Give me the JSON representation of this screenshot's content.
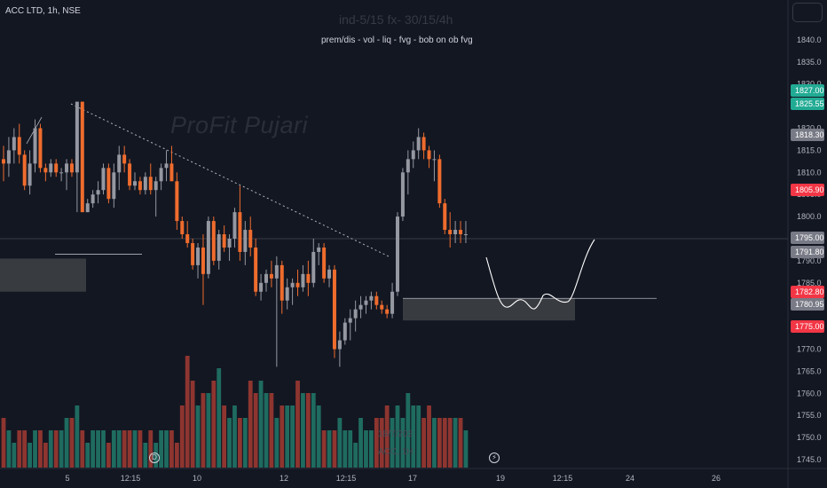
{
  "symbol_title": "ACC LTD, 1h, NSE",
  "watermark_top": "ind-5/15 fx- 30/15/4h",
  "indicator_subtitle": "prem/dis - vol - liq - fvg - bob on ob fvg",
  "watermark_name": "ProFit Pujari",
  "watermark_bottom_1": "18/7/202",
  "watermark_bottom_2": "ACC, 1H",
  "icons": {
    "menu": "hamburger-icon",
    "event_left": "dividend-icon",
    "event_right": "earnings-lightning-icon"
  },
  "colors": {
    "background": "#131722",
    "up": "#9598a1",
    "down": "#ef6c2d",
    "vol_up": "#1f6b60",
    "vol_down": "#8e3530",
    "tag_green": "#22ab94",
    "tag_red": "#f23645",
    "tag_gray": "#787b86",
    "zone": "#4a4a4a"
  },
  "chart_data": {
    "type": "candlestick",
    "ylim": [
      1744,
      1845
    ],
    "y_ticks": [
      1745,
      1750,
      1755,
      1760,
      1765,
      1770,
      1775,
      1780,
      1785,
      1790,
      1795,
      1800,
      1805,
      1810,
      1815,
      1820,
      1825,
      1830,
      1835,
      1840
    ],
    "x_ticks": [
      "5",
      "12:15",
      "10",
      "12",
      "12:15",
      "17",
      "19",
      "12:15",
      "24",
      "26"
    ],
    "price_tags": [
      {
        "value": "1827.00",
        "color": "green"
      },
      {
        "value": "1825.55",
        "color": "green"
      },
      {
        "value": "1818.30",
        "color": "gray"
      },
      {
        "value": "1805.90",
        "color": "red"
      },
      {
        "value": "1795.00",
        "color": "gray"
      },
      {
        "value": "1791.80",
        "color": "gray"
      },
      {
        "value": "1782.80",
        "color": "red"
      },
      {
        "value": "1780.95",
        "color": "gray"
      },
      {
        "value": "1775.00",
        "color": "red"
      }
    ],
    "candles": [
      [
        1813,
        1816,
        1808,
        1812
      ],
      [
        1812,
        1818,
        1809,
        1815
      ],
      [
        1815,
        1820,
        1812,
        1818
      ],
      [
        1818,
        1821,
        1812,
        1814
      ],
      [
        1814,
        1815,
        1806,
        1807
      ],
      [
        1807,
        1815,
        1805,
        1812
      ],
      [
        1812,
        1822,
        1810,
        1820
      ],
      [
        1820,
        1821,
        1810,
        1811
      ],
      [
        1811,
        1812,
        1808,
        1810
      ],
      [
        1810,
        1813,
        1809,
        1812
      ],
      [
        1812,
        1813,
        1809,
        1810
      ],
      [
        1810,
        1811,
        1808,
        1810
      ],
      [
        1810,
        1813,
        1806,
        1812
      ],
      [
        1812,
        1813,
        1809,
        1810
      ],
      [
        1810,
        1826,
        1801,
        1826
      ],
      [
        1826,
        1826,
        1801,
        1801
      ],
      [
        1801,
        1804,
        1801,
        1803
      ],
      [
        1803,
        1806,
        1802,
        1805
      ],
      [
        1805,
        1808,
        1803,
        1806
      ],
      [
        1806,
        1812,
        1805,
        1811
      ],
      [
        1811,
        1812,
        1803,
        1804
      ],
      [
        1804,
        1812,
        1802,
        1810
      ],
      [
        1810,
        1816,
        1806,
        1814
      ],
      [
        1814,
        1816,
        1810,
        1812
      ],
      [
        1812,
        1813,
        1806,
        1807
      ],
      [
        1807,
        1810,
        1806,
        1808
      ],
      [
        1808,
        1809,
        1805,
        1806
      ],
      [
        1806,
        1810,
        1805,
        1809
      ],
      [
        1809,
        1812,
        1805,
        1806
      ],
      [
        1806,
        1809,
        1800,
        1808
      ],
      [
        1808,
        1812,
        1806,
        1811
      ],
      [
        1811,
        1815,
        1808,
        1812
      ],
      [
        1812,
        1816,
        1808,
        1808
      ],
      [
        1808,
        1810,
        1797,
        1799
      ],
      [
        1799,
        1800,
        1795,
        1796
      ],
      [
        1796,
        1799,
        1793,
        1794
      ],
      [
        1794,
        1795,
        1788,
        1789
      ],
      [
        1789,
        1794,
        1786,
        1793
      ],
      [
        1793,
        1796,
        1780,
        1787
      ],
      [
        1787,
        1800,
        1786,
        1799
      ],
      [
        1799,
        1800,
        1789,
        1790
      ],
      [
        1790,
        1797,
        1788,
        1796
      ],
      [
        1796,
        1798,
        1792,
        1793
      ],
      [
        1793,
        1796,
        1790,
        1795
      ],
      [
        1795,
        1802,
        1793,
        1801
      ],
      [
        1801,
        1807,
        1790,
        1792
      ],
      [
        1792,
        1799,
        1789,
        1797
      ],
      [
        1797,
        1800,
        1791,
        1793
      ],
      [
        1793,
        1795,
        1782,
        1783
      ],
      [
        1783,
        1787,
        1781,
        1785
      ],
      [
        1785,
        1788,
        1783,
        1787
      ],
      [
        1787,
        1790,
        1784,
        1786
      ],
      [
        1786,
        1791,
        1766,
        1789
      ],
      [
        1789,
        1790,
        1778,
        1781
      ],
      [
        1781,
        1786,
        1779,
        1784
      ],
      [
        1784,
        1786,
        1780,
        1785
      ],
      [
        1785,
        1788,
        1782,
        1784
      ],
      [
        1784,
        1789,
        1783,
        1787
      ],
      [
        1787,
        1790,
        1782,
        1785
      ],
      [
        1785,
        1795,
        1784,
        1792
      ],
      [
        1792,
        1794,
        1789,
        1793
      ],
      [
        1793,
        1794,
        1785,
        1786
      ],
      [
        1786,
        1789,
        1784,
        1788
      ],
      [
        1788,
        1789,
        1768,
        1770
      ],
      [
        1770,
        1774,
        1766,
        1772
      ],
      [
        1772,
        1777,
        1771,
        1776
      ],
      [
        1776,
        1779,
        1772,
        1777
      ],
      [
        1777,
        1781,
        1774,
        1779
      ],
      [
        1779,
        1782,
        1777,
        1780
      ],
      [
        1780,
        1782,
        1778,
        1781
      ],
      [
        1781,
        1783,
        1779,
        1782
      ],
      [
        1782,
        1783,
        1779,
        1780
      ],
      [
        1780,
        1781,
        1778,
        1779
      ],
      [
        1779,
        1780,
        1777,
        1778
      ],
      [
        1778,
        1785,
        1777,
        1783
      ],
      [
        1783,
        1801,
        1782,
        1800
      ],
      [
        1800,
        1811,
        1799,
        1810
      ],
      [
        1810,
        1815,
        1805,
        1813
      ],
      [
        1813,
        1817,
        1811,
        1815
      ],
      [
        1815,
        1820,
        1813,
        1818
      ],
      [
        1818,
        1819,
        1813,
        1815
      ],
      [
        1815,
        1816,
        1811,
        1813
      ],
      [
        1813,
        1815,
        1808,
        1813
      ],
      [
        1813,
        1814,
        1802,
        1803
      ],
      [
        1803,
        1804,
        1796,
        1797
      ],
      [
        1797,
        1801,
        1793,
        1796
      ],
      [
        1796,
        1799,
        1794,
        1797
      ],
      [
        1797,
        1799,
        1794,
        1796
      ],
      [
        1796,
        1799,
        1794,
        1796
      ]
    ],
    "volume": [
      4,
      3,
      2,
      3,
      3,
      2,
      3,
      3,
      2,
      3,
      3,
      3,
      4,
      4,
      5,
      3,
      2,
      3,
      3,
      3,
      2,
      3,
      3,
      3,
      3,
      3,
      3,
      2,
      3,
      2,
      3,
      3,
      3,
      2,
      5,
      9,
      7,
      5,
      6,
      6,
      7,
      8,
      5,
      4,
      5,
      4,
      4,
      7,
      6,
      7,
      6,
      6,
      4,
      5,
      5,
      5,
      7,
      6,
      6,
      6,
      5,
      3,
      3,
      3,
      4,
      3,
      3,
      2,
      4,
      3,
      3,
      4,
      4,
      5,
      4,
      5,
      4,
      6,
      5,
      5,
      4,
      5,
      4,
      4,
      4,
      4,
      4,
      4,
      3
    ],
    "zones": [
      {
        "from": "5",
        "to": "5",
        "top": 1790.5,
        "bottom": 1783.0
      },
      {
        "top": 1781.5,
        "bottom": 1776.5
      }
    ]
  }
}
